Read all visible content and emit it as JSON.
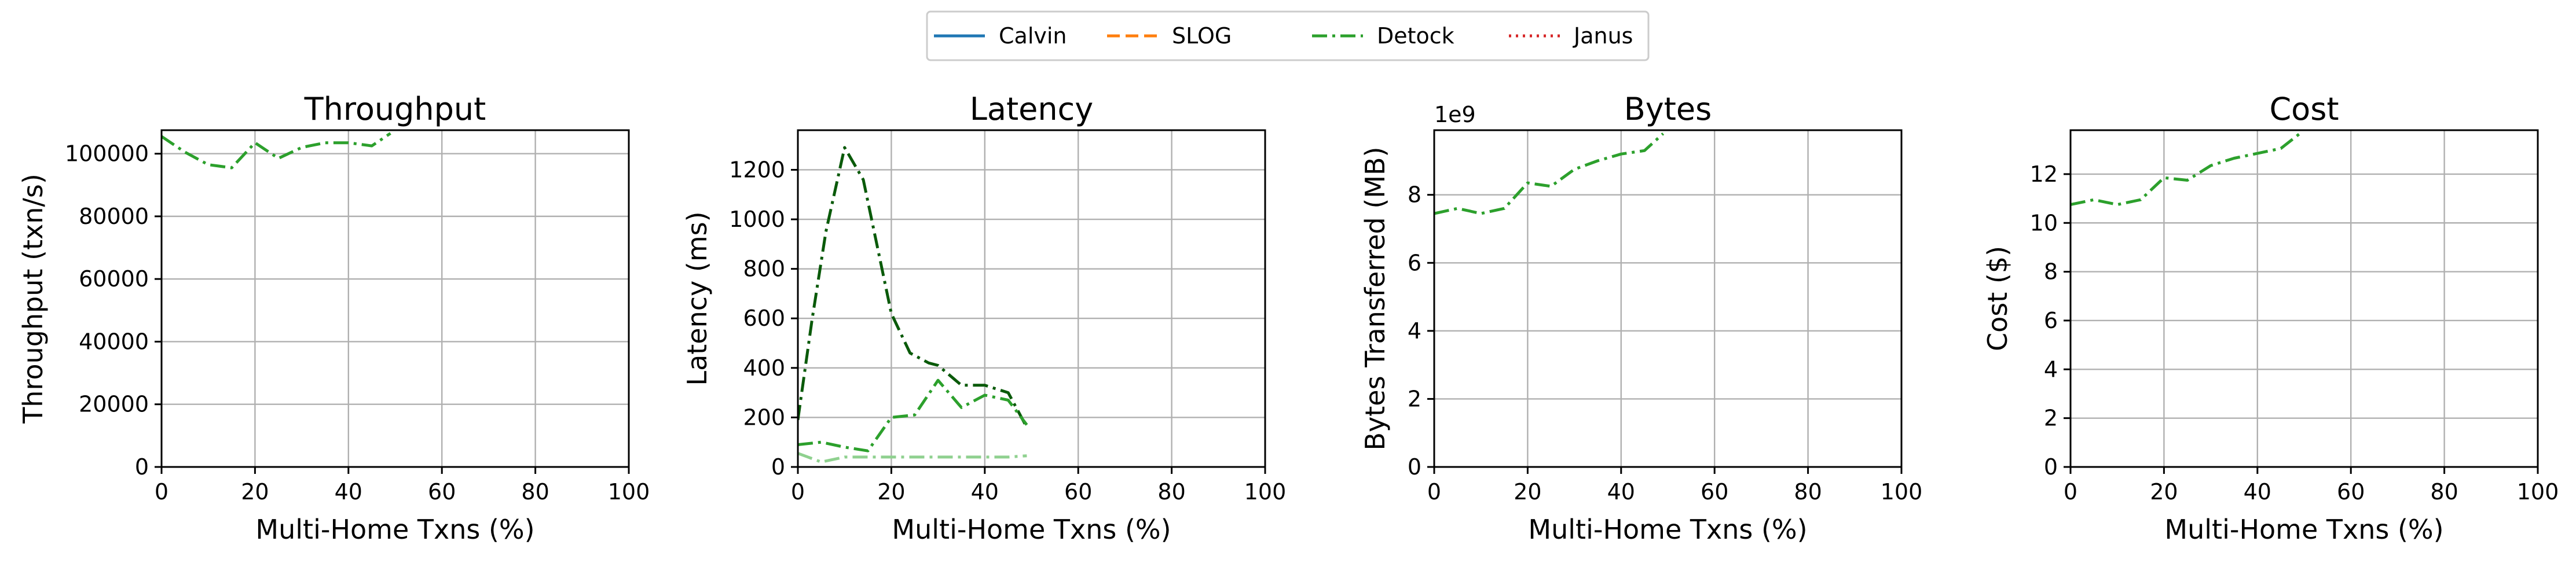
{
  "legend": {
    "placement": "top-center",
    "entries": [
      {
        "label": "Calvin",
        "color": "#1f77b4",
        "dash": "solid"
      },
      {
        "label": "SLOG",
        "color": "#ff7f0e",
        "dash": "dashed"
      },
      {
        "label": "Detock",
        "color": "#2ca02c",
        "dash": "dashdot"
      },
      {
        "label": "Janus",
        "color": "#d62728",
        "dash": "dotted"
      }
    ]
  },
  "chart_data": [
    {
      "type": "line",
      "title": "Throughput",
      "xlabel": "Multi-Home Txns (%)",
      "ylabel": "Throughput (txn/s)",
      "xlim": [
        0,
        100
      ],
      "ylim": [
        0,
        107500
      ],
      "xticks": [
        0,
        20,
        40,
        60,
        80,
        100
      ],
      "yticks": [
        0,
        20000,
        40000,
        60000,
        80000,
        100000
      ],
      "grid": true,
      "offset_text": "",
      "series": [
        {
          "name": "Detock",
          "color": "#2ca02c",
          "dash": "dashdot",
          "x": [
            0,
            5,
            10,
            15,
            20,
            25,
            30,
            35,
            40,
            45,
            49
          ],
          "y": [
            105500,
            100500,
            96500,
            95500,
            103500,
            98500,
            102000,
            103500,
            103500,
            102500,
            106500
          ]
        }
      ]
    },
    {
      "type": "line",
      "title": "Latency",
      "xlabel": "Multi-Home Txns (%)",
      "ylabel": "Latency (ms)",
      "xlim": [
        0,
        100
      ],
      "ylim": [
        0,
        1360
      ],
      "xticks": [
        0,
        20,
        40,
        60,
        80,
        100
      ],
      "yticks": [
        0,
        200,
        400,
        600,
        800,
        1000,
        1200
      ],
      "grid": true,
      "offset_text": "",
      "series": [
        {
          "color": "#0a5a0a",
          "dash": "dashdot",
          "x": [
            0,
            3,
            6,
            10,
            14,
            20,
            24,
            28,
            30,
            35,
            40,
            45,
            49
          ],
          "y": [
            190,
            590,
            950,
            1290,
            1160,
            620,
            460,
            420,
            410,
            330,
            330,
            300,
            160
          ]
        },
        {
          "color": "#2ca02c",
          "dash": "dashdot",
          "x": [
            0,
            5,
            10,
            15,
            20,
            25,
            30,
            35,
            40,
            45,
            49
          ],
          "y": [
            90,
            100,
            80,
            65,
            200,
            210,
            350,
            240,
            290,
            270,
            170
          ]
        },
        {
          "color": "#8fd18f",
          "dash": "dashdot",
          "x": [
            0,
            5,
            10,
            15,
            20,
            25,
            30,
            35,
            40,
            45,
            49
          ],
          "y": [
            55,
            20,
            40,
            40,
            40,
            40,
            40,
            40,
            40,
            40,
            45
          ]
        }
      ]
    },
    {
      "type": "line",
      "title": "Bytes",
      "xlabel": "Multi-Home Txns (%)",
      "ylabel": "Bytes Transferred (MB)",
      "xlim": [
        0,
        100
      ],
      "ylim": [
        0,
        9.9
      ],
      "xticks": [
        0,
        20,
        40,
        60,
        80,
        100
      ],
      "yticks": [
        0,
        2,
        4,
        6,
        8
      ],
      "grid": true,
      "offset_text": "1e9",
      "series": [
        {
          "name": "Detock",
          "color": "#2ca02c",
          "dash": "dashdot",
          "x": [
            0,
            5,
            10,
            15,
            20,
            25,
            30,
            35,
            40,
            45,
            49
          ],
          "y": [
            7.45,
            7.6,
            7.45,
            7.6,
            8.35,
            8.25,
            8.75,
            9.0,
            9.2,
            9.3,
            9.8
          ]
        }
      ]
    },
    {
      "type": "line",
      "title": "Cost",
      "xlabel": "Multi-Home Txns (%)",
      "ylabel": "Cost ($)",
      "xlim": [
        0,
        100
      ],
      "ylim": [
        0,
        13.8
      ],
      "xticks": [
        0,
        20,
        40,
        60,
        80,
        100
      ],
      "yticks": [
        0,
        2,
        4,
        6,
        8,
        10,
        12
      ],
      "grid": true,
      "offset_text": "",
      "series": [
        {
          "name": "Detock",
          "color": "#2ca02c",
          "dash": "dashdot",
          "x": [
            0,
            5,
            10,
            15,
            20,
            25,
            30,
            35,
            40,
            45,
            49
          ],
          "y": [
            10.75,
            10.95,
            10.75,
            10.95,
            11.85,
            11.75,
            12.35,
            12.65,
            12.85,
            13.05,
            13.65
          ]
        }
      ]
    }
  ]
}
